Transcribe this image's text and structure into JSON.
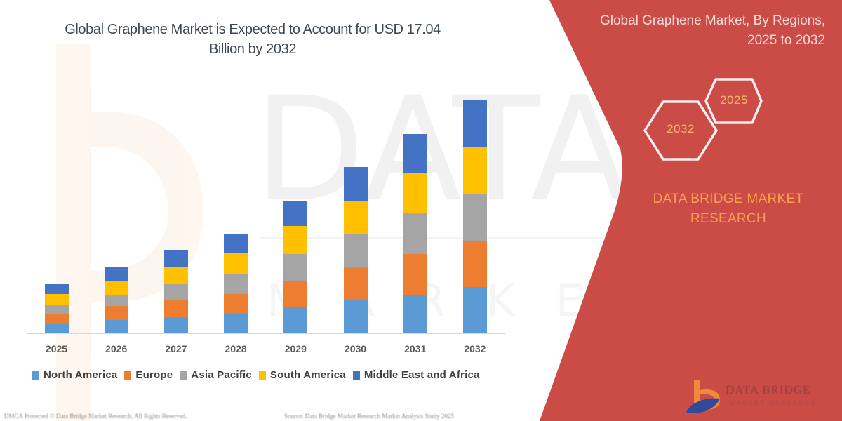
{
  "header": {
    "title_line1": "Global Graphene Market is Expected to Account for USD 17.04",
    "title_line2": "Billion by 2032"
  },
  "side_panel": {
    "title_line1": "Global Graphene Market, By Regions,",
    "title_line2": "2025 to 2032",
    "hexagons": [
      {
        "label": "2025"
      },
      {
        "label": "2032"
      }
    ],
    "brand_line1": "DATA BRIDGE MARKET",
    "brand_line2": "RESEARCH",
    "logo_name": "DATA BRIDGE",
    "logo_sub": "MARKET RESEARCH",
    "colors": {
      "panel": "#cb4b47",
      "hex_stroke": "#fbeeee",
      "hex_text": "#f4b86e",
      "brand_text": "#f7a24b",
      "title_text": "#f7dcda"
    }
  },
  "watermark": {
    "text": "DATA BRIDGE",
    "sub": "MARKET"
  },
  "footer": {
    "left": "DMCA Protected © Data Bridge Market Research. All Rights Reserved.",
    "right": "Source: Data Bridge Market Research Market Analysis Study 2025"
  },
  "chart_data": {
    "type": "bar",
    "stacked": true,
    "title": "Global Graphene Market is Expected to Account for USD 17.04 Billion by 2032",
    "subtitle": "Global Graphene Market, By Regions, 2025 to 2032",
    "xlabel": "",
    "ylabel": "",
    "units": "USD Billion (estimated from bar heights; no y-axis shown)",
    "grid": false,
    "legend_position": "bottom",
    "ylim": [
      0,
      18
    ],
    "categories": [
      "2025",
      "2026",
      "2027",
      "2028",
      "2029",
      "2030",
      "2031",
      "2032"
    ],
    "series": [
      {
        "name": "North America",
        "color": "#5b9bd5",
        "values": [
          0.67,
          0.98,
          1.18,
          1.44,
          1.95,
          2.41,
          2.82,
          3.39
        ]
      },
      {
        "name": "Europe",
        "color": "#ed7d31",
        "values": [
          0.77,
          1.03,
          1.23,
          1.44,
          1.9,
          2.46,
          2.98,
          3.39
        ]
      },
      {
        "name": "Asia Pacific",
        "color": "#a5a5a5",
        "values": [
          0.62,
          0.82,
          1.18,
          1.49,
          1.95,
          2.41,
          2.98,
          3.39
        ]
      },
      {
        "name": "South America",
        "color": "#ffc000",
        "values": [
          0.82,
          1.03,
          1.23,
          1.49,
          2.05,
          2.41,
          2.93,
          3.49
        ]
      },
      {
        "name": "Middle East and Africa",
        "color": "#4472c4",
        "values": [
          0.72,
          0.98,
          1.23,
          1.44,
          1.8,
          2.46,
          2.87,
          3.38
        ]
      }
    ],
    "totals": [
      3.6,
      4.84,
      6.05,
      7.3,
      9.65,
      12.15,
      14.58,
      17.04
    ]
  }
}
